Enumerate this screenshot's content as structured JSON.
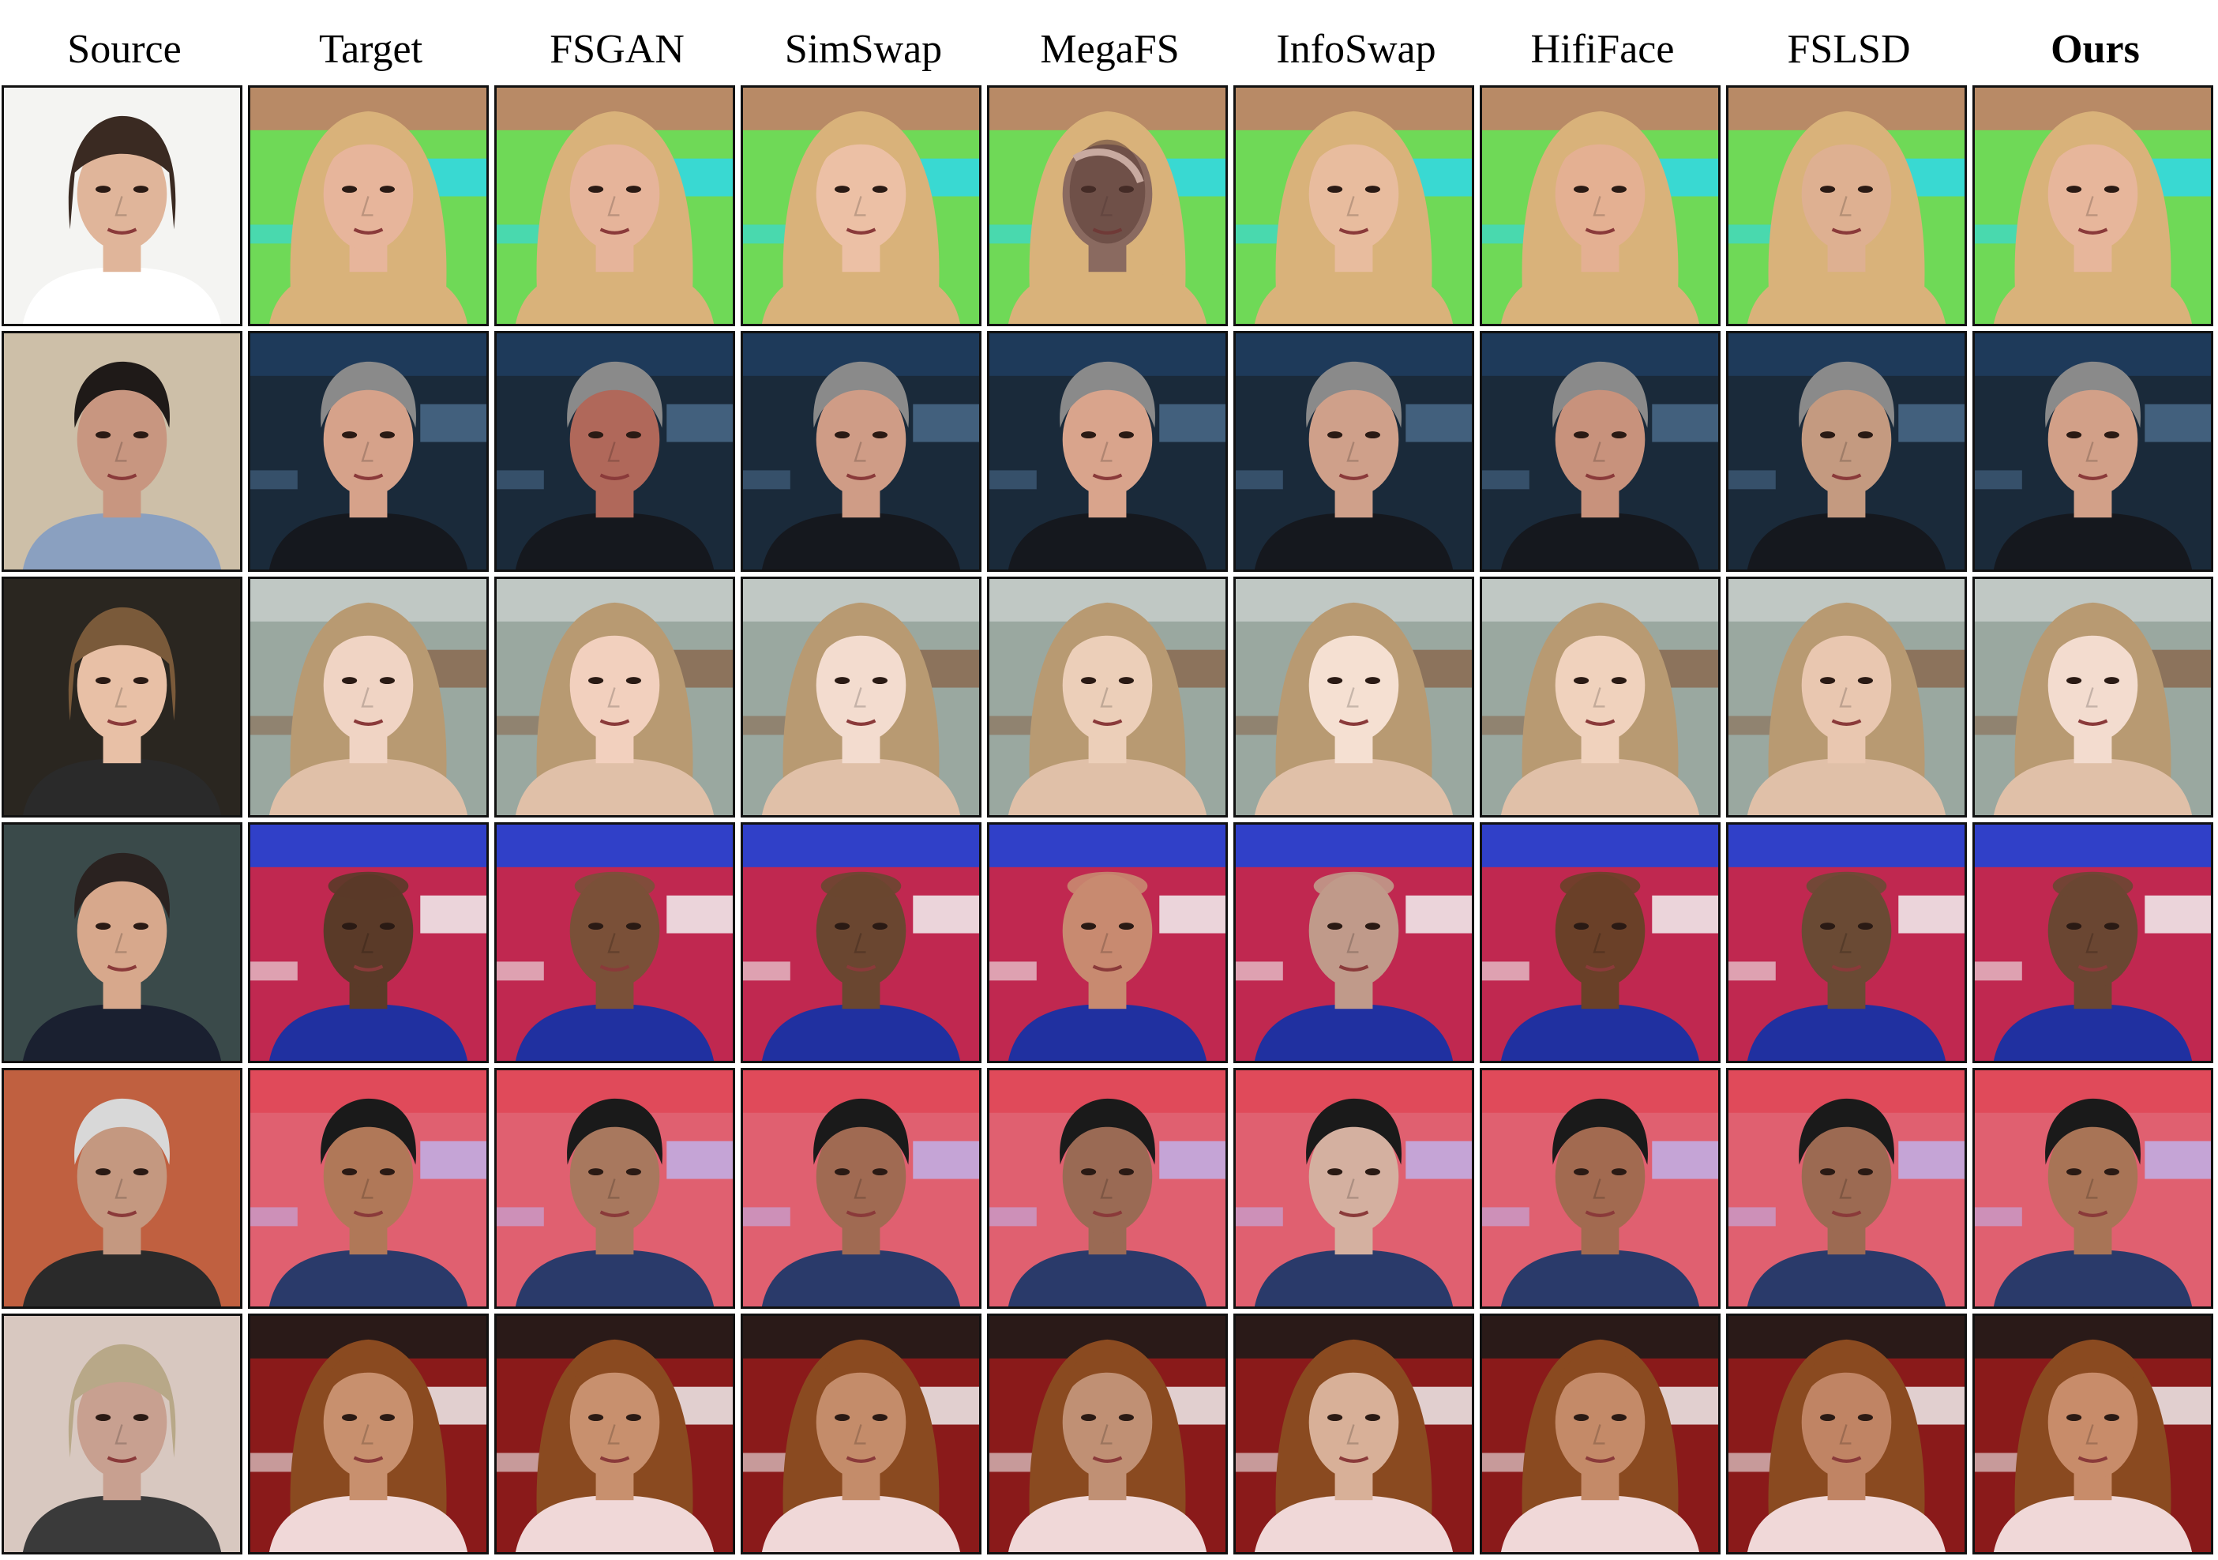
{
  "figure": {
    "columns": [
      {
        "label": "Source",
        "bold": false
      },
      {
        "label": "Target",
        "bold": false
      },
      {
        "label": "FSGAN",
        "bold": false
      },
      {
        "label": "SimSwap",
        "bold": false
      },
      {
        "label": "MegaFS",
        "bold": false
      },
      {
        "label": "InfoSwap",
        "bold": false
      },
      {
        "label": "HifiFace",
        "bold": false
      },
      {
        "label": "FSLSD",
        "bold": false
      },
      {
        "label": "Ours",
        "bold": true
      }
    ],
    "rows": [
      {
        "source": {
          "bg": "#f4f4f2",
          "hair": "#3a2a22",
          "skin": "#e0b59a",
          "shirt": "#ffffff",
          "hair_style": "bangs"
        },
        "target": {
          "bg_top": "#b88a66",
          "bg": "#6fd957",
          "accent": "#30d8e8",
          "hair": "#d9b27a",
          "skin": "#e7b59b",
          "shirt": "#d9b27a",
          "hair_style": "long"
        },
        "results": [
          {
            "skin": "#e6b49a"
          },
          {
            "skin": "#ecc0a5"
          },
          {
            "skin": "#8a6a60",
            "artifact": true
          },
          {
            "skin": "#e8bc9e"
          },
          {
            "skin": "#e4b092"
          },
          {
            "skin": "#deb091"
          },
          {
            "skin": "#e7b69b"
          }
        ]
      },
      {
        "source": {
          "bg": "#cdbfa8",
          "hair": "#1f1a18",
          "skin": "#c89680",
          "shirt": "#8aa0c0",
          "hair_style": "short"
        },
        "target": {
          "bg_top": "#1e3a5a",
          "bg": "#1a2a3a",
          "accent": "#4a6a8a",
          "hair": "#8a8a8a",
          "skin": "#d6a28a",
          "shirt": "#15181e",
          "hair_style": "short"
        },
        "results": [
          {
            "skin": "#b0685a"
          },
          {
            "skin": "#cf9c86"
          },
          {
            "skin": "#d9a48c"
          },
          {
            "skin": "#cfa08a"
          },
          {
            "skin": "#c8927c"
          },
          {
            "skin": "#c49a80"
          },
          {
            "skin": "#d2a088"
          }
        ]
      },
      {
        "source": {
          "bg": "#2a2620",
          "hair": "#7a5a3a",
          "skin": "#e8c0a6",
          "shirt": "#2a2a2a",
          "hair_style": "bangs"
        },
        "target": {
          "bg_top": "#c0c8c4",
          "bg": "#9aa8a0",
          "accent": "#8a6a50",
          "hair": "#b89a72",
          "skin": "#f0d4c4",
          "shirt": "#e0c0a8",
          "hair_style": "long"
        },
        "results": [
          {
            "skin": "#f2d0be"
          },
          {
            "skin": "#f3dccf"
          },
          {
            "skin": "#eccfb9"
          },
          {
            "skin": "#f5e0d2"
          },
          {
            "skin": "#f0d2bd"
          },
          {
            "skin": "#e9c7b0"
          },
          {
            "skin": "#f3dccf"
          }
        ]
      },
      {
        "source": {
          "bg": "#3a4a4a",
          "hair": "#2a2220",
          "skin": "#d7a88c",
          "shirt": "#1a2030",
          "hair_style": "short"
        },
        "target": {
          "bg_top": "#3040c8",
          "bg": "#c02850",
          "accent": "#f2f2f2",
          "hair": "#3a2218",
          "skin": "#5a3a28",
          "shirt": "#2030a0",
          "hair_style": "bald"
        },
        "results": [
          {
            "skin": "#7a5038"
          },
          {
            "skin": "#6a4630"
          },
          {
            "skin": "#c88a70"
          },
          {
            "skin": "#c09a8a"
          },
          {
            "skin": "#6a4028"
          },
          {
            "skin": "#6a4a34"
          },
          {
            "skin": "#6a4632"
          }
        ]
      },
      {
        "source": {
          "bg": "#c06040",
          "hair": "#d8d8d8",
          "skin": "#c49880",
          "shirt": "#2a2a2a",
          "hair_style": "short"
        },
        "target": {
          "bg_top": "#e04a5a",
          "bg": "#e06070",
          "accent": "#c0b0e8",
          "hair": "#1a1a1a",
          "skin": "#b07858",
          "shirt": "#2a3a6a",
          "hair_style": "short"
        },
        "results": [
          {
            "skin": "#a8785e"
          },
          {
            "skin": "#a06a52"
          },
          {
            "skin": "#9a6a54"
          },
          {
            "skin": "#d4b0a0"
          },
          {
            "skin": "#a26a50"
          },
          {
            "skin": "#9c6a52"
          },
          {
            "skin": "#a87456"
          }
        ]
      },
      {
        "source": {
          "bg": "#d8c8c0",
          "hair": "#b8a888",
          "skin": "#c8a090",
          "shirt": "#3a3a3a",
          "hair_style": "bangs"
        },
        "target": {
          "bg_top": "#2a1a18",
          "bg": "#8a1a1a",
          "accent": "#f0f0f0",
          "hair": "#8a4a20",
          "skin": "#c8906e",
          "shirt": "#f0d8d8",
          "hair_style": "long"
        },
        "results": [
          {
            "skin": "#c8906e"
          },
          {
            "skin": "#c48c6a"
          },
          {
            "skin": "#c09074"
          },
          {
            "skin": "#d8b098"
          },
          {
            "skin": "#c48a68"
          },
          {
            "skin": "#c08464"
          },
          {
            "skin": "#c88c6a"
          }
        ]
      }
    ]
  }
}
